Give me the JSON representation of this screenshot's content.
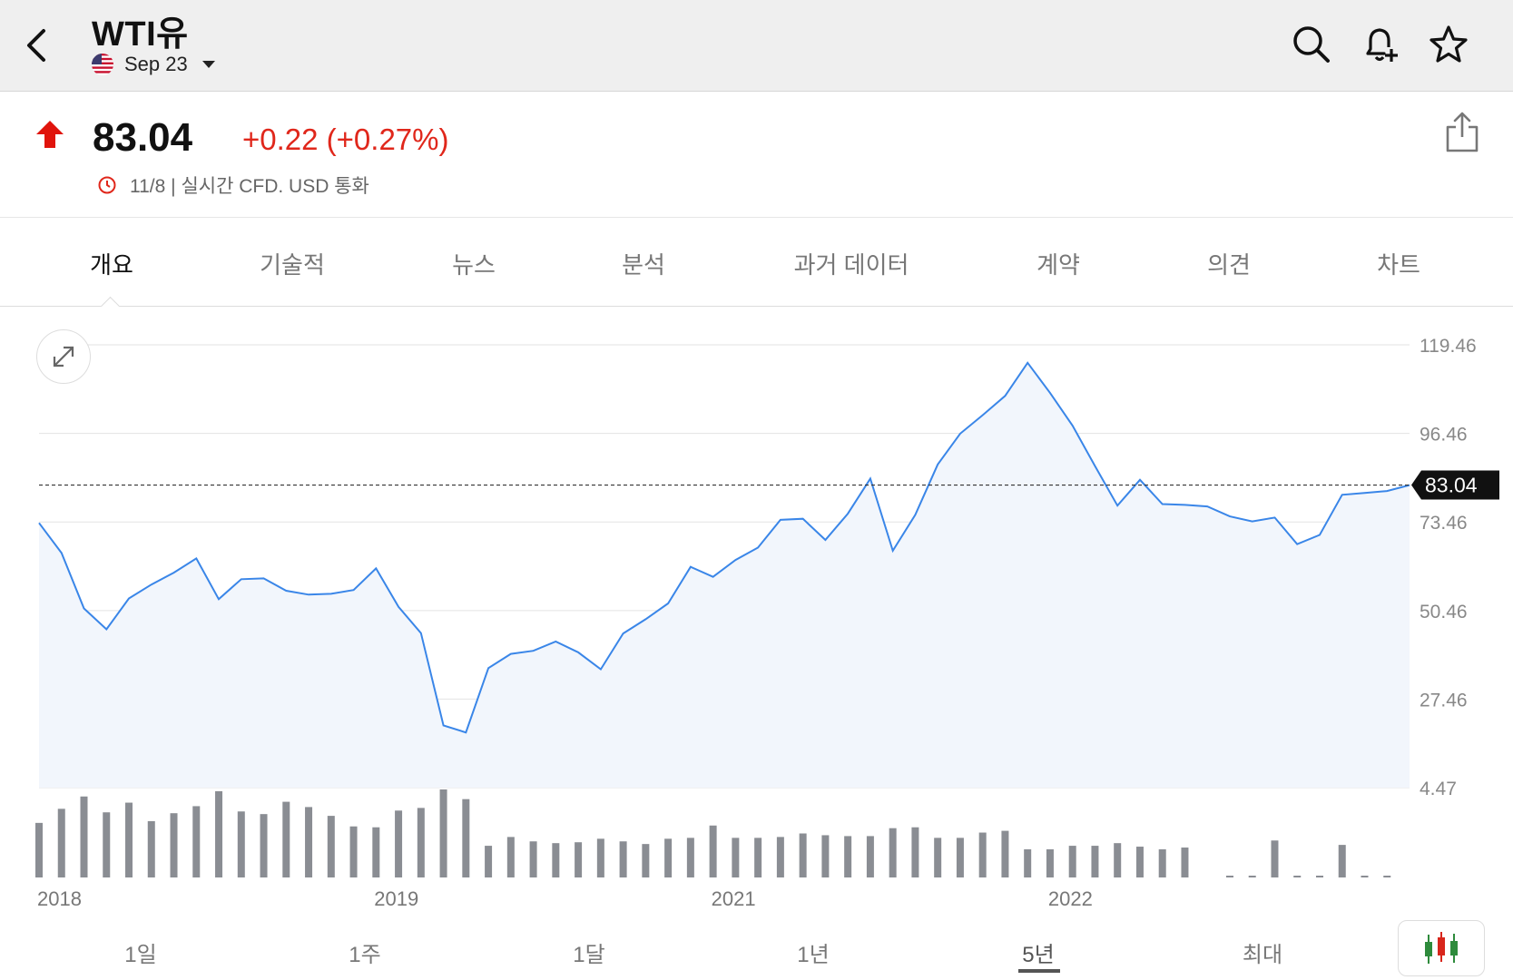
{
  "header": {
    "title": "WTI유",
    "contract": "Sep 23"
  },
  "quote": {
    "price": "83.04",
    "change": "+0.22 (+0.27%)",
    "meta": "11/8 | 실시간 CFD. USD 통화",
    "direction": "up",
    "up_color": "#e0271b"
  },
  "tabs": [
    "개요",
    "기술적",
    "뉴스",
    "분석",
    "과거 데이터",
    "계약",
    "의견",
    "차트"
  ],
  "active_tab": 0,
  "chart_data": {
    "type": "area",
    "y_ticks": [
      119.46,
      96.46,
      73.46,
      50.46,
      27.46,
      4.47
    ],
    "y_tick_labels": [
      "119.46",
      "96.46",
      "73.46",
      "50.46",
      "27.46",
      "4.47"
    ],
    "ylim": [
      4.47,
      119.46
    ],
    "x_labels": [
      "2018",
      "2019",
      "2021",
      "2022"
    ],
    "x_label_index": [
      0,
      15,
      30,
      45
    ],
    "current_price": 83.04,
    "current_label": "83.04",
    "line_color": "#3a86e8",
    "values": [
      73.2,
      65.4,
      51.0,
      45.6,
      53.6,
      57.2,
      60.3,
      64.0,
      53.4,
      58.6,
      58.8,
      55.6,
      54.6,
      54.8,
      55.8,
      61.4,
      51.4,
      44.6,
      20.6,
      18.8,
      35.5,
      39.2,
      40.0,
      42.4,
      39.6,
      35.2,
      44.5,
      48.2,
      52.3,
      61.8,
      59.2,
      63.6,
      66.8,
      74.0,
      74.3,
      68.8,
      75.6,
      84.7,
      66.0,
      75.3,
      88.4,
      96.4,
      101.2,
      106.2,
      114.8,
      107.0,
      98.5,
      88.0,
      77.7,
      84.4,
      78.1,
      77.9,
      77.5,
      74.9,
      73.6,
      74.6,
      67.7,
      70.1,
      80.5,
      81.0,
      81.5,
      83.04
    ],
    "volumes": [
      0.62,
      0.78,
      0.92,
      0.74,
      0.85,
      0.64,
      0.73,
      0.81,
      0.98,
      0.75,
      0.72,
      0.86,
      0.8,
      0.7,
      0.58,
      0.57,
      0.76,
      0.79,
      1.0,
      0.89,
      0.36,
      0.46,
      0.41,
      0.39,
      0.4,
      0.44,
      0.41,
      0.38,
      0.44,
      0.45,
      0.59,
      0.45,
      0.45,
      0.46,
      0.5,
      0.48,
      0.47,
      0.47,
      0.56,
      0.57,
      0.45,
      0.45,
      0.51,
      0.53,
      0.32,
      0.32,
      0.36,
      0.36,
      0.39,
      0.35,
      0.32,
      0.34,
      null,
      0.01,
      0.01,
      0.42,
      0.01,
      0.01,
      0.37,
      0.01,
      0.01,
      null
    ]
  },
  "ranges": [
    "1일",
    "1주",
    "1달",
    "1년",
    "5년",
    "최대"
  ],
  "active_range": 4
}
